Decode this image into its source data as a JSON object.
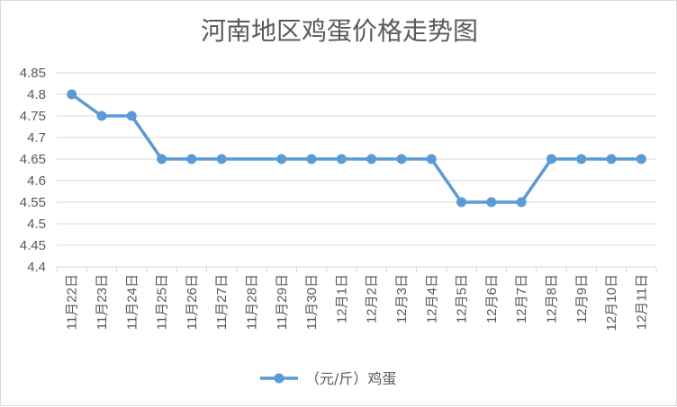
{
  "chart_data": {
    "type": "line",
    "title": "河南地区鸡蛋价格走势图",
    "categories": [
      "11月22日",
      "11月23日",
      "11月24日",
      "11月25日",
      "11月26日",
      "11月27日",
      "11月28日",
      "11月29日",
      "11月30日",
      "12月1日",
      "12月2日",
      "12月3日",
      "12月4日",
      "12月5日",
      "12月6日",
      "12月7日",
      "12月8日",
      "12月9日",
      "12月10日",
      "12月11日"
    ],
    "series": [
      {
        "name": "（元/斤）鸡蛋",
        "color": "#5b9bd5",
        "values": [
          4.8,
          4.75,
          4.75,
          4.65,
          4.65,
          4.65,
          null,
          4.65,
          4.65,
          4.65,
          4.65,
          4.65,
          4.65,
          4.55,
          4.55,
          4.55,
          4.65,
          4.65,
          4.65,
          4.65
        ]
      }
    ],
    "yticks": [
      "4.4",
      "4.45",
      "4.5",
      "4.55",
      "4.6",
      "4.65",
      "4.7",
      "4.75",
      "4.8",
      "4.85"
    ],
    "ylim": [
      4.4,
      4.85
    ],
    "grid": "horizontal",
    "legend": "bottom"
  }
}
